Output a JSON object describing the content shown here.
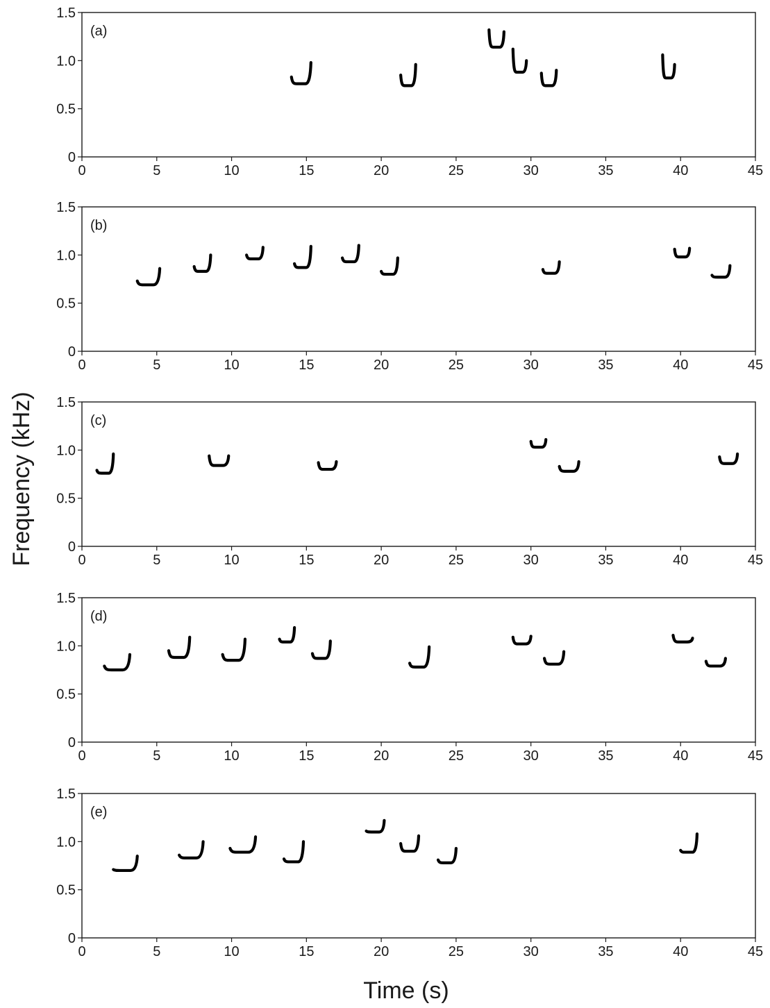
{
  "chart_data": {
    "type": "spectrogram",
    "xlabel": "Time (s)",
    "ylabel": "Frequency (kHz)",
    "xlim": [
      0,
      45
    ],
    "ylim": [
      0,
      1.5
    ],
    "x_ticks": [
      0,
      5,
      10,
      15,
      20,
      25,
      30,
      35,
      40,
      45
    ],
    "y_ticks": [
      0,
      0.5,
      1.0,
      1.5
    ],
    "y_tick_labels": [
      "0",
      "0.5",
      "1.0",
      "1.5"
    ],
    "panels": [
      {
        "label": "(a)",
        "calls": [
          {
            "t0": 14.0,
            "t1": 15.3,
            "f_start": 0.83,
            "f_min": 0.76,
            "f_end": 0.98,
            "shape": "U"
          },
          {
            "t0": 21.3,
            "t1": 22.3,
            "f_start": 0.85,
            "f_min": 0.74,
            "f_end": 0.96,
            "shape": "U"
          },
          {
            "t0": 27.2,
            "t1": 28.2,
            "f_start": 1.32,
            "f_min": 1.14,
            "f_end": 1.3,
            "shape": "U"
          },
          {
            "t0": 28.8,
            "t1": 29.7,
            "f_start": 1.12,
            "f_min": 0.88,
            "f_end": 1.0,
            "shape": "U"
          },
          {
            "t0": 30.7,
            "t1": 31.7,
            "f_start": 0.87,
            "f_min": 0.74,
            "f_end": 0.9,
            "shape": "U"
          },
          {
            "t0": 38.8,
            "t1": 39.6,
            "f_start": 1.06,
            "f_min": 0.82,
            "f_end": 0.96,
            "shape": "U"
          }
        ]
      },
      {
        "label": "(b)",
        "calls": [
          {
            "t0": 3.7,
            "t1": 5.2,
            "f_start": 0.73,
            "f_min": 0.69,
            "f_end": 0.86,
            "shape": "U"
          },
          {
            "t0": 7.5,
            "t1": 8.6,
            "f_start": 0.88,
            "f_min": 0.83,
            "f_end": 1.0,
            "shape": "U"
          },
          {
            "t0": 11.0,
            "t1": 12.1,
            "f_start": 1.0,
            "f_min": 0.96,
            "f_end": 1.08,
            "shape": "U"
          },
          {
            "t0": 14.2,
            "t1": 15.3,
            "f_start": 0.91,
            "f_min": 0.87,
            "f_end": 1.09,
            "shape": "U"
          },
          {
            "t0": 17.4,
            "t1": 18.5,
            "f_start": 0.97,
            "f_min": 0.93,
            "f_end": 1.1,
            "shape": "U"
          },
          {
            "t0": 20.0,
            "t1": 21.1,
            "f_start": 0.83,
            "f_min": 0.8,
            "f_end": 0.97,
            "shape": "U"
          },
          {
            "t0": 30.8,
            "t1": 31.9,
            "f_start": 0.85,
            "f_min": 0.81,
            "f_end": 0.93,
            "shape": "U"
          },
          {
            "t0": 39.6,
            "t1": 40.6,
            "f_start": 1.06,
            "f_min": 0.98,
            "f_end": 1.07,
            "shape": "U"
          },
          {
            "t0": 42.1,
            "t1": 43.3,
            "f_start": 0.79,
            "f_min": 0.77,
            "f_end": 0.89,
            "shape": "U"
          }
        ]
      },
      {
        "label": "(c)",
        "calls": [
          {
            "t0": 1.0,
            "t1": 2.1,
            "f_start": 0.79,
            "f_min": 0.76,
            "f_end": 0.96,
            "shape": "U"
          },
          {
            "t0": 8.5,
            "t1": 9.8,
            "f_start": 0.94,
            "f_min": 0.84,
            "f_end": 0.94,
            "shape": "U"
          },
          {
            "t0": 15.8,
            "t1": 17.0,
            "f_start": 0.87,
            "f_min": 0.8,
            "f_end": 0.88,
            "shape": "U"
          },
          {
            "t0": 30.0,
            "t1": 31.0,
            "f_start": 1.09,
            "f_min": 1.03,
            "f_end": 1.11,
            "shape": "U"
          },
          {
            "t0": 31.9,
            "t1": 33.2,
            "f_start": 0.83,
            "f_min": 0.78,
            "f_end": 0.88,
            "shape": "U"
          },
          {
            "t0": 42.6,
            "t1": 43.8,
            "f_start": 0.93,
            "f_min": 0.86,
            "f_end": 0.96,
            "shape": "U"
          }
        ]
      },
      {
        "label": "(d)",
        "calls": [
          {
            "t0": 1.5,
            "t1": 3.2,
            "f_start": 0.79,
            "f_min": 0.75,
            "f_end": 0.91,
            "shape": "U"
          },
          {
            "t0": 5.8,
            "t1": 7.2,
            "f_start": 0.95,
            "f_min": 0.88,
            "f_end": 1.09,
            "shape": "U"
          },
          {
            "t0": 9.4,
            "t1": 10.9,
            "f_start": 0.91,
            "f_min": 0.85,
            "f_end": 1.07,
            "shape": "U"
          },
          {
            "t0": 13.2,
            "t1": 14.2,
            "f_start": 1.07,
            "f_min": 1.04,
            "f_end": 1.19,
            "shape": "U"
          },
          {
            "t0": 15.4,
            "t1": 16.6,
            "f_start": 0.92,
            "f_min": 0.87,
            "f_end": 1.05,
            "shape": "U"
          },
          {
            "t0": 21.9,
            "t1": 23.2,
            "f_start": 0.82,
            "f_min": 0.78,
            "f_end": 0.99,
            "shape": "U"
          },
          {
            "t0": 28.8,
            "t1": 30.0,
            "f_start": 1.09,
            "f_min": 1.02,
            "f_end": 1.1,
            "shape": "U"
          },
          {
            "t0": 30.9,
            "t1": 32.2,
            "f_start": 0.87,
            "f_min": 0.81,
            "f_end": 0.94,
            "shape": "U"
          },
          {
            "t0": 39.5,
            "t1": 40.8,
            "f_start": 1.11,
            "f_min": 1.04,
            "f_end": 1.08,
            "shape": "U"
          },
          {
            "t0": 41.7,
            "t1": 43.0,
            "f_start": 0.84,
            "f_min": 0.79,
            "f_end": 0.87,
            "shape": "U"
          }
        ]
      },
      {
        "label": "(e)",
        "calls": [
          {
            "t0": 2.1,
            "t1": 3.7,
            "f_start": 0.71,
            "f_min": 0.7,
            "f_end": 0.85,
            "shape": "U"
          },
          {
            "t0": 6.5,
            "t1": 8.1,
            "f_start": 0.86,
            "f_min": 0.83,
            "f_end": 1.0,
            "shape": "U"
          },
          {
            "t0": 9.9,
            "t1": 11.6,
            "f_start": 0.93,
            "f_min": 0.89,
            "f_end": 1.05,
            "shape": "U"
          },
          {
            "t0": 13.5,
            "t1": 14.8,
            "f_start": 0.82,
            "f_min": 0.79,
            "f_end": 1.0,
            "shape": "U"
          },
          {
            "t0": 19.0,
            "t1": 20.2,
            "f_start": 1.11,
            "f_min": 1.1,
            "f_end": 1.22,
            "shape": "U"
          },
          {
            "t0": 21.3,
            "t1": 22.5,
            "f_start": 0.98,
            "f_min": 0.9,
            "f_end": 1.06,
            "shape": "U"
          },
          {
            "t0": 23.8,
            "t1": 25.0,
            "f_start": 0.81,
            "f_min": 0.78,
            "f_end": 0.93,
            "shape": "U"
          },
          {
            "t0": 40.0,
            "t1": 41.1,
            "f_start": 0.91,
            "f_min": 0.89,
            "f_end": 1.08,
            "shape": "U"
          }
        ]
      }
    ]
  }
}
